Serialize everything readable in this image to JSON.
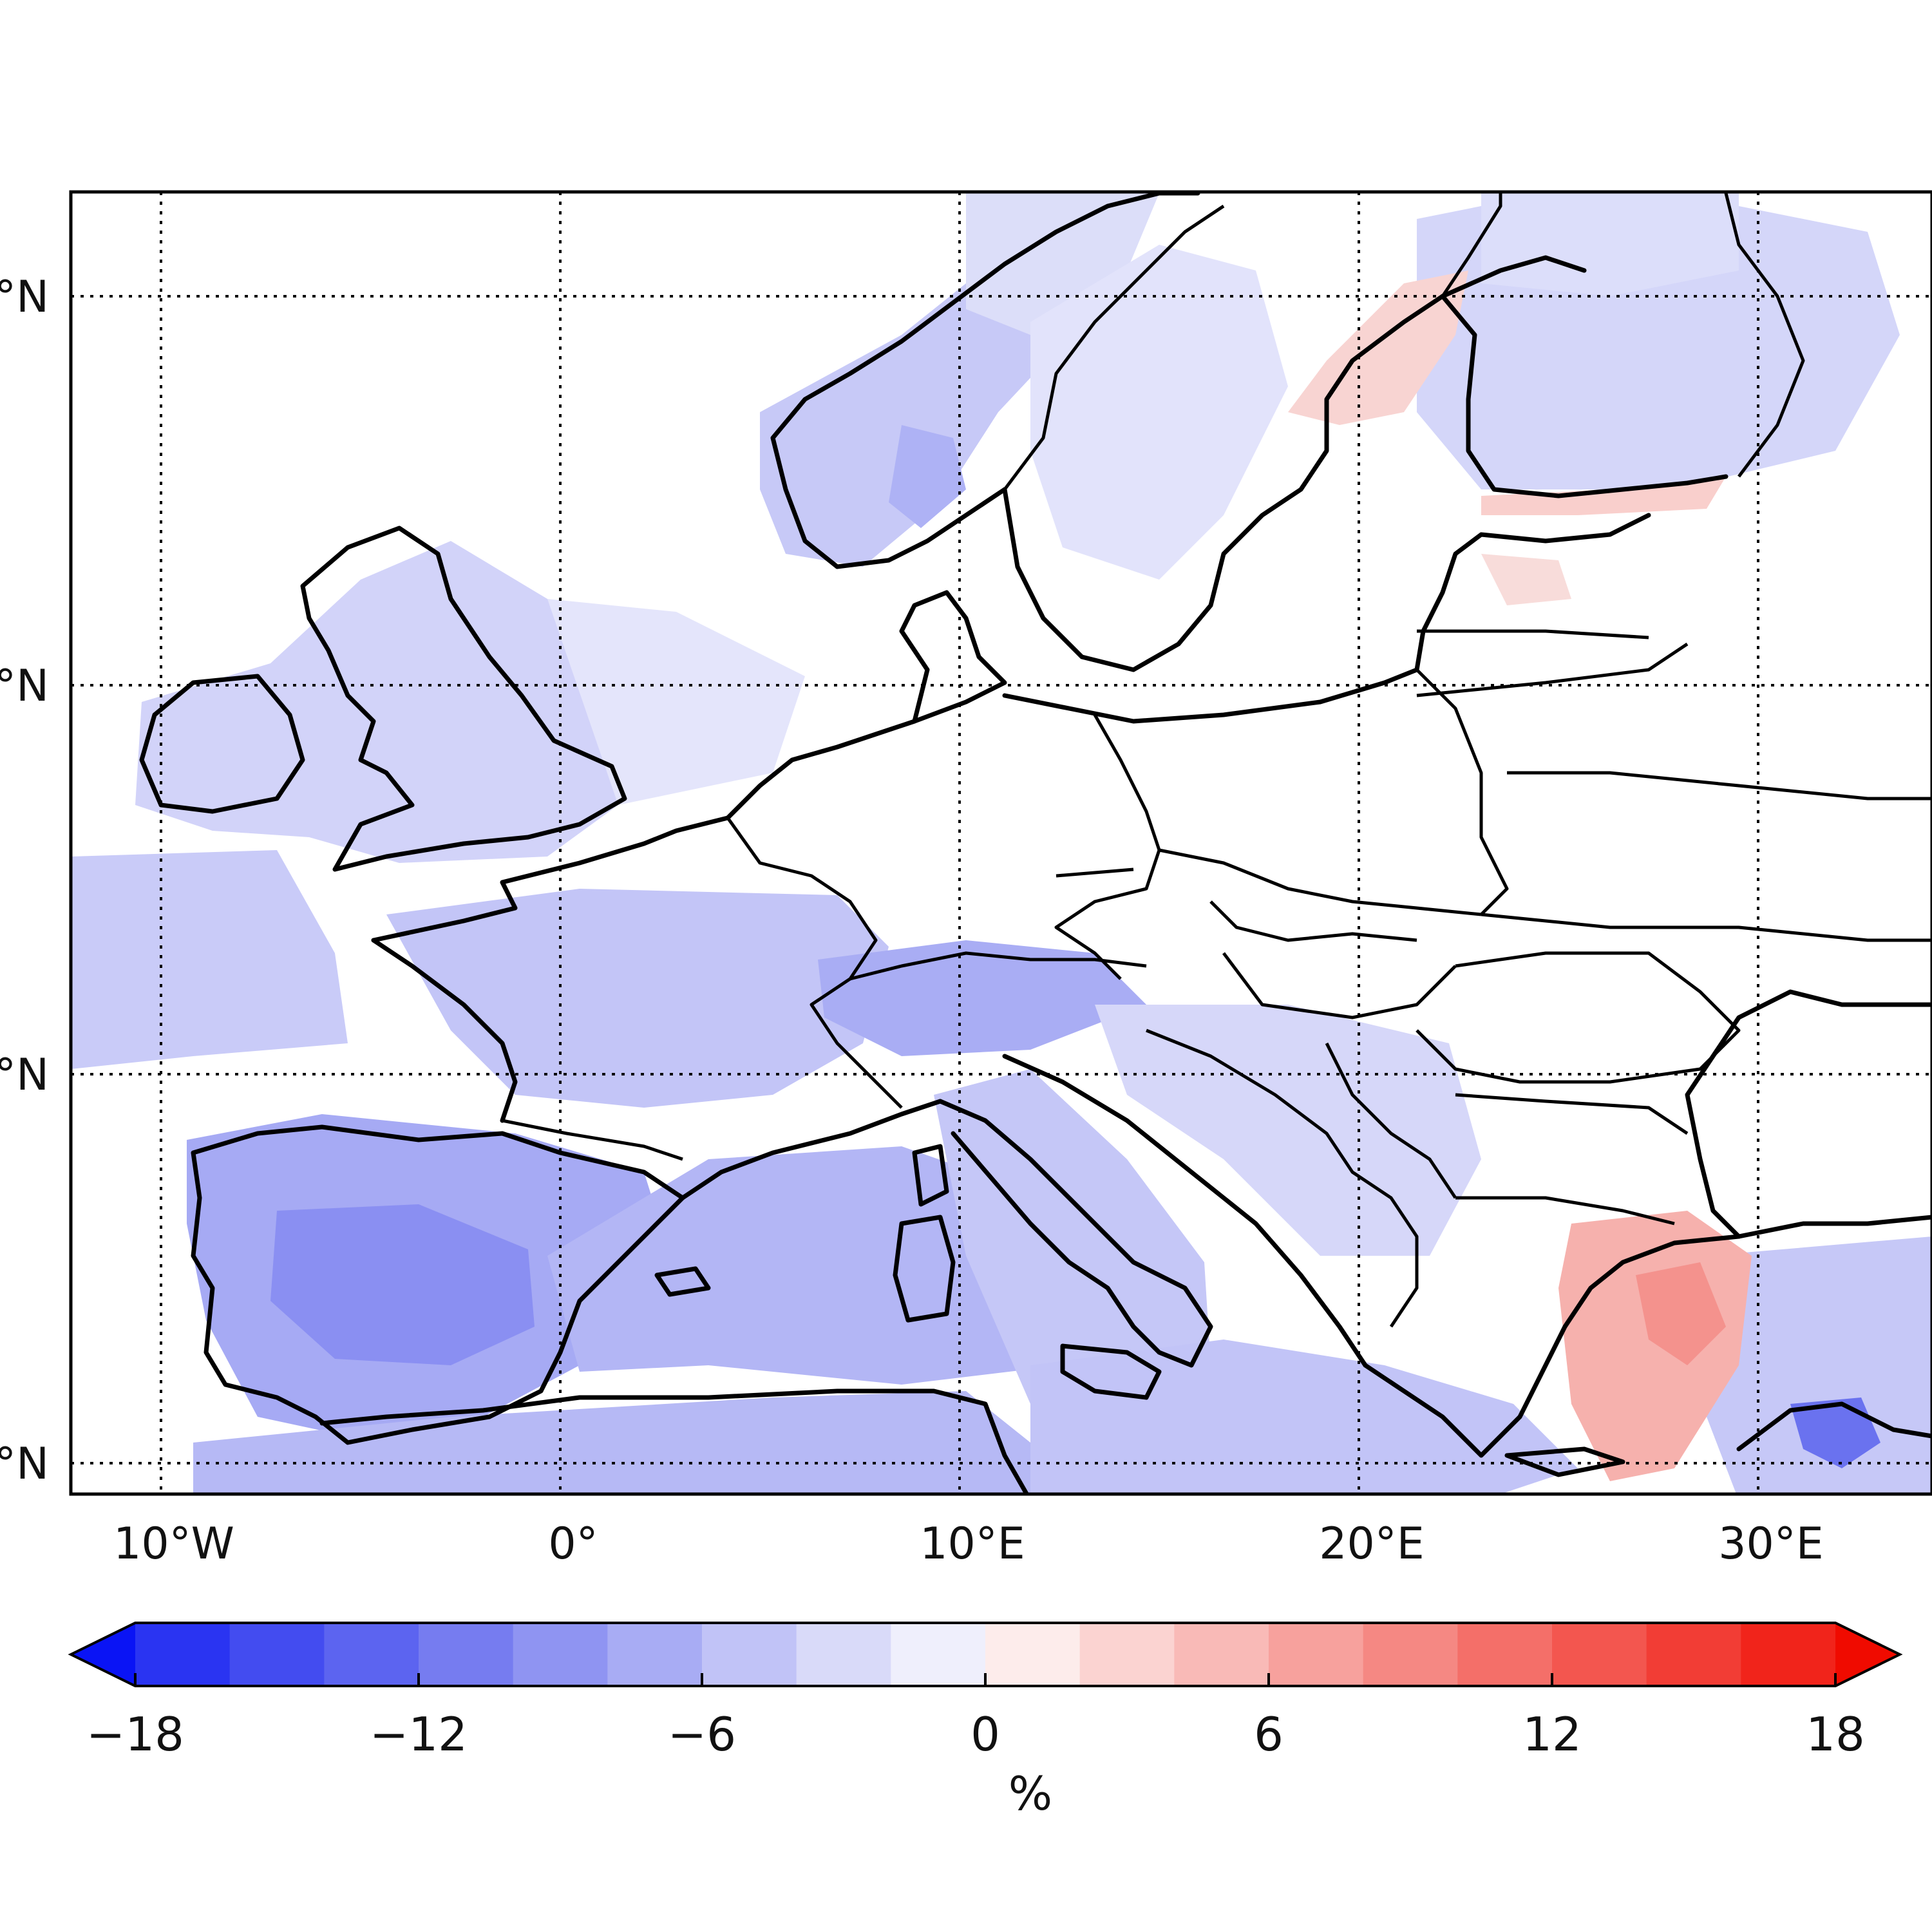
{
  "map": {
    "lon_ticks": [
      {
        "value": -10,
        "label": "10°W"
      },
      {
        "value": 0,
        "label": "0°"
      },
      {
        "value": 10,
        "label": "10°E"
      },
      {
        "value": 20,
        "label": "20°E"
      },
      {
        "value": 30,
        "label": "30°E"
      }
    ],
    "lat_ticks": [
      {
        "value": 65,
        "label": "°N"
      },
      {
        "value": 55,
        "label": "°N"
      },
      {
        "value": 45,
        "label": "°N"
      },
      {
        "value": 35,
        "label": "°N"
      }
    ],
    "lon_range": [
      -12.2,
      34.5
    ],
    "lat_range": [
      34.3,
      67.7
    ],
    "grid": "dotted"
  },
  "colorbar": {
    "unit": "%",
    "min": -20,
    "max": 20,
    "step": 2,
    "extend": "both",
    "tick_values": [
      -18,
      -12,
      -6,
      0,
      6,
      12,
      18
    ],
    "tick_labels": [
      "−18",
      "−12",
      "−6",
      "0",
      "6",
      "12",
      "18"
    ],
    "colors": [
      "#0a14f5",
      "#2a34f2",
      "#434cf0",
      "#5c64f0",
      "#767cf0",
      "#8f94f2",
      "#a8acf4",
      "#c1c3f7",
      "#d9daf9",
      "#efeffc",
      "#fdeceb",
      "#fbd3d1",
      "#f9bab7",
      "#f7a19d",
      "#f58883",
      "#f46f69",
      "#f3564f",
      "#f23d35",
      "#f1241b",
      "#f00b00"
    ]
  }
}
